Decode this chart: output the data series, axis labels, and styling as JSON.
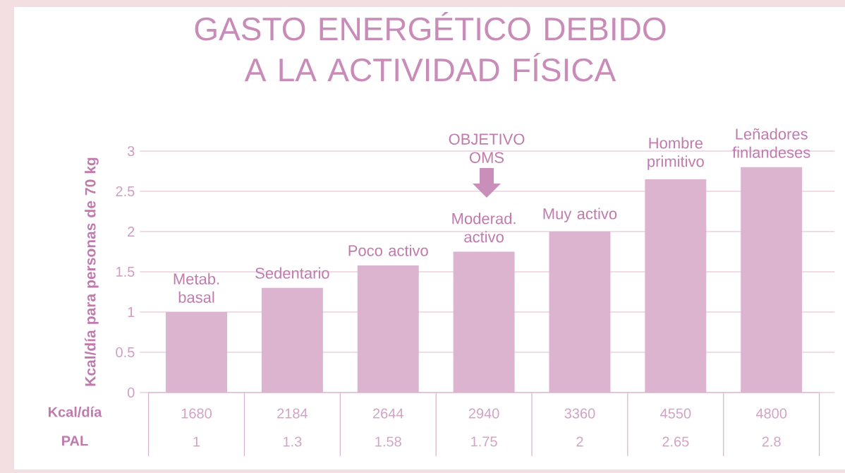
{
  "chart_data": {
    "type": "bar",
    "title": "GASTO ENERGÉTICO DEBIDO A LA ACTIVIDAD FÍSICA",
    "ylabel": "Kcal/día para personas de 70 kg",
    "categories": [
      "Metab. basal",
      "Sedentario",
      "Poco activo",
      "Moderad. activo",
      "Muy activo",
      "Hombre primitivo",
      "Leñadores finlandeses"
    ],
    "values": [
      1,
      1.3,
      1.58,
      1.75,
      2,
      2.65,
      2.8
    ],
    "color": "#dcb4d0",
    "ylim": [
      0,
      3
    ],
    "yticks": [
      0,
      0.5,
      1,
      1.5,
      2,
      2.5,
      3
    ],
    "grid": "y",
    "data_labels": true,
    "annotations": [
      "Kcal/día",
      "1680",
      "2184",
      "2644",
      "2940",
      "3360",
      "4550",
      "4800",
      "PAL",
      "OBJETIVO OMS"
    ]
  }
}
